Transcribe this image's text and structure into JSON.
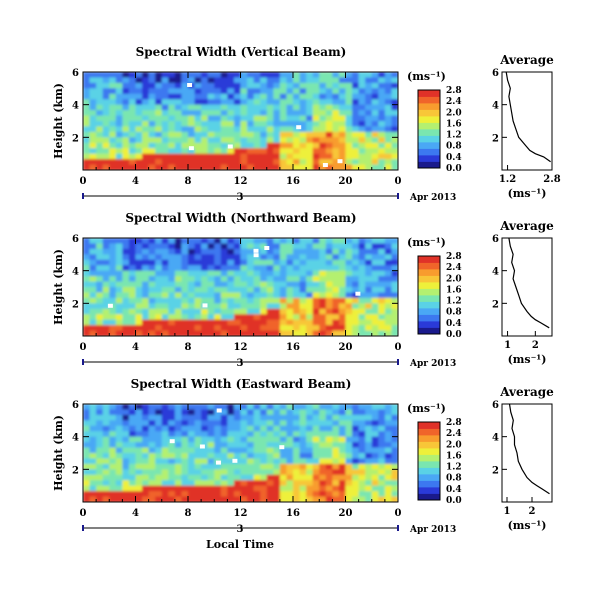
{
  "figure": {
    "common_xlabel": "Local Time",
    "date_label": "Apr 2013",
    "day_label": "3"
  },
  "colorbar": {
    "unit": "(ms⁻¹)",
    "colors": [
      "#1a1a8c",
      "#2a3ad8",
      "#3c78f0",
      "#4aa8f5",
      "#5ad2e6",
      "#7ae6b0",
      "#b4f070",
      "#eef03a",
      "#f8c638",
      "#f89c2e",
      "#f0642a",
      "#e03228"
    ]
  },
  "chart_data": [
    {
      "type": "heatmap",
      "title": "Spectral Width (Vertical Beam)",
      "xlabel": "",
      "ylabel": "Height (km)",
      "xlim": [
        0,
        24
      ],
      "ylim": [
        0,
        6
      ],
      "xticks": [
        "0",
        "4",
        "8",
        "12",
        "16",
        "20",
        "0"
      ],
      "yticks": [
        "2",
        "4",
        "6"
      ],
      "colorbar_ticks": [
        "0.0",
        "0.4",
        "0.8",
        "1.2",
        "1.6",
        "2.0",
        "2.4",
        "2.8"
      ],
      "z_range": [
        0,
        2.8
      ],
      "average": {
        "title": "Average",
        "xlabel": "(ms⁻¹)",
        "xlim": [
          1.0,
          2.8
        ],
        "xticks": [
          "1.2",
          "2.8"
        ],
        "heights": [
          0.5,
          0.8,
          1.0,
          1.2,
          1.5,
          2.0,
          2.5,
          3.0,
          3.5,
          4.0,
          4.5,
          5.0,
          5.5,
          6.0
        ],
        "values": [
          2.75,
          2.5,
          2.2,
          2.0,
          1.85,
          1.6,
          1.5,
          1.4,
          1.35,
          1.3,
          1.25,
          1.3,
          1.2,
          1.15
        ]
      }
    },
    {
      "type": "heatmap",
      "title": "Spectral Width (Northward Beam)",
      "xlabel": "",
      "ylabel": "Height (km)",
      "xlim": [
        0,
        24
      ],
      "ylim": [
        0,
        6
      ],
      "xticks": [
        "0",
        "4",
        "8",
        "12",
        "16",
        "20",
        "0"
      ],
      "yticks": [
        "2",
        "4",
        "6"
      ],
      "colorbar_ticks": [
        "0.0",
        "0.4",
        "0.8",
        "1.2",
        "1.6",
        "2.0",
        "2.4",
        "2.8"
      ],
      "z_range": [
        0,
        2.8
      ],
      "average": {
        "title": "Average",
        "xlabel": "(ms⁻¹)",
        "xlim": [
          0.8,
          2.6
        ],
        "xticks": [
          "1",
          "2"
        ],
        "heights": [
          0.5,
          0.8,
          1.0,
          1.2,
          1.5,
          2.0,
          2.5,
          3.0,
          3.5,
          4.0,
          4.5,
          5.0,
          5.5,
          6.0
        ],
        "values": [
          2.5,
          2.2,
          2.0,
          1.85,
          1.7,
          1.5,
          1.4,
          1.3,
          1.2,
          1.25,
          1.15,
          1.2,
          1.1,
          1.05
        ]
      }
    },
    {
      "type": "heatmap",
      "title": "Spectral Width (Eastward Beam)",
      "xlabel": "Local Time",
      "ylabel": "Height (km)",
      "xlim": [
        0,
        24
      ],
      "ylim": [
        0,
        6
      ],
      "xticks": [
        "0",
        "4",
        "8",
        "12",
        "16",
        "20",
        "0"
      ],
      "yticks": [
        "2",
        "4",
        "6"
      ],
      "colorbar_ticks": [
        "0.0",
        "0.4",
        "0.8",
        "1.2",
        "1.6",
        "2.0",
        "2.4",
        "2.8"
      ],
      "z_range": [
        0,
        2.8
      ],
      "average": {
        "title": "Average",
        "xlabel": "(ms⁻¹)",
        "xlim": [
          0.8,
          2.8
        ],
        "xticks": [
          "1",
          "2"
        ],
        "heights": [
          0.5,
          0.8,
          1.0,
          1.2,
          1.5,
          2.0,
          2.5,
          3.0,
          3.5,
          4.0,
          4.5,
          5.0,
          5.5,
          6.0
        ],
        "values": [
          2.7,
          2.4,
          2.2,
          2.0,
          1.8,
          1.6,
          1.45,
          1.4,
          1.3,
          1.3,
          1.2,
          1.25,
          1.15,
          1.1
        ]
      }
    }
  ]
}
